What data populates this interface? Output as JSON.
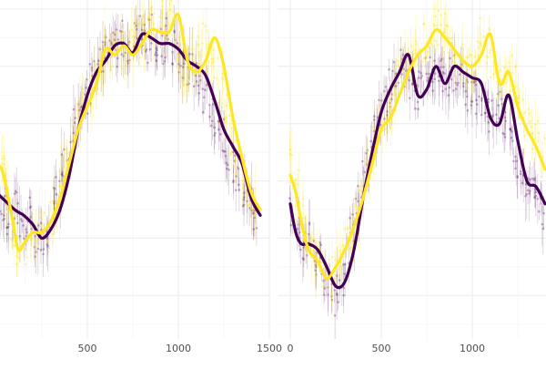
{
  "colors": {
    "series_a": "#440154",
    "series_b": "#fde725",
    "grid": "#ebebeb",
    "background": "#ffffff",
    "tick_text": "#4d4d4d"
  },
  "chart_data": [
    {
      "type": "scatter",
      "panel": "left",
      "xlim": [
        0,
        1500
      ],
      "x_ticks": [
        500,
        1000,
        1500
      ],
      "x_tick_labels": [
        "500",
        "1000",
        "1500"
      ],
      "ylim": [
        -1.3,
        1.5
      ],
      "grid": true,
      "error_bars": true,
      "series": [
        {
          "color": "#440154",
          "smooth_x": [
            0,
            100,
            150,
            200,
            250,
            300,
            350,
            400,
            450,
            500,
            550,
            600,
            650,
            700,
            750,
            800,
            850,
            900,
            950,
            1000,
            1050,
            1100,
            1150,
            1200,
            1250,
            1300,
            1350,
            1400,
            1450
          ],
          "smooth_y": [
            -0.1,
            -0.25,
            -0.3,
            -0.38,
            -0.5,
            -0.42,
            -0.25,
            0.05,
            0.45,
            0.75,
            0.95,
            1.05,
            1.18,
            1.2,
            1.12,
            1.28,
            1.25,
            1.2,
            1.2,
            1.15,
            1.05,
            1.0,
            0.92,
            0.7,
            0.45,
            0.3,
            0.15,
            -0.15,
            -0.3
          ],
          "points": [
            [
              10,
              -0.15
            ],
            [
              40,
              -0.2
            ],
            [
              70,
              -0.3
            ],
            [
              100,
              -0.25
            ],
            [
              130,
              -0.35
            ],
            [
              160,
              -0.45
            ],
            [
              190,
              -0.3
            ],
            [
              220,
              -0.55
            ],
            [
              250,
              -0.5
            ],
            [
              280,
              -0.4
            ],
            [
              310,
              -0.2
            ],
            [
              340,
              -0.1
            ],
            [
              370,
              0.1
            ],
            [
              400,
              0.25
            ],
            [
              430,
              0.45
            ],
            [
              460,
              0.6
            ],
            [
              490,
              0.75
            ],
            [
              520,
              0.85
            ],
            [
              550,
              0.95
            ],
            [
              580,
              1.05
            ],
            [
              610,
              1.1
            ],
            [
              640,
              1.2
            ],
            [
              670,
              1.15
            ],
            [
              700,
              1.25
            ],
            [
              730,
              1.1
            ],
            [
              760,
              1.25
            ],
            [
              790,
              1.3
            ],
            [
              820,
              1.2
            ],
            [
              850,
              1.28
            ],
            [
              880,
              1.22
            ],
            [
              910,
              1.18
            ],
            [
              940,
              1.25
            ],
            [
              970,
              1.15
            ],
            [
              1000,
              1.1
            ],
            [
              1030,
              1.05
            ],
            [
              1060,
              1.0
            ],
            [
              1090,
              0.95
            ],
            [
              1120,
              0.85
            ],
            [
              1150,
              0.75
            ],
            [
              1180,
              0.6
            ],
            [
              1210,
              0.5
            ],
            [
              1240,
              0.4
            ],
            [
              1270,
              0.25
            ],
            [
              1300,
              0.15
            ],
            [
              1330,
              0.0
            ],
            [
              1360,
              -0.1
            ],
            [
              1390,
              -0.2
            ],
            [
              1420,
              -0.35
            ]
          ]
        },
        {
          "color": "#fde725",
          "smooth_x": [
            0,
            30,
            60,
            90,
            120,
            150,
            200,
            250,
            300,
            350,
            400,
            450,
            500,
            550,
            600,
            650,
            700,
            750,
            800,
            850,
            900,
            950,
            1000,
            1050,
            1100,
            1150,
            1200,
            1250,
            1300,
            1350,
            1400,
            1450
          ],
          "smooth_y": [
            0.15,
            0.1,
            -0.1,
            -0.35,
            -0.6,
            -0.55,
            -0.45,
            -0.45,
            -0.35,
            -0.15,
            0.15,
            0.45,
            0.65,
            0.85,
            1.15,
            1.1,
            1.18,
            1.1,
            1.2,
            1.32,
            1.3,
            1.3,
            1.45,
            1.05,
            0.95,
            1.05,
            1.25,
            1.0,
            0.55,
            0.2,
            -0.1,
            -0.25
          ],
          "points": [
            [
              5,
              0.2
            ],
            [
              35,
              0.05
            ],
            [
              65,
              -0.15
            ],
            [
              95,
              -0.4
            ],
            [
              125,
              -0.55
            ],
            [
              155,
              -0.6
            ],
            [
              185,
              -0.45
            ],
            [
              215,
              -0.5
            ],
            [
              245,
              -0.4
            ],
            [
              275,
              -0.45
            ],
            [
              305,
              -0.3
            ],
            [
              335,
              -0.15
            ],
            [
              365,
              0.05
            ],
            [
              395,
              0.2
            ],
            [
              425,
              0.4
            ],
            [
              455,
              0.55
            ],
            [
              485,
              0.7
            ],
            [
              515,
              0.8
            ],
            [
              545,
              0.9
            ],
            [
              575,
              1.05
            ],
            [
              605,
              1.15
            ],
            [
              635,
              1.1
            ],
            [
              665,
              1.2
            ],
            [
              695,
              1.15
            ],
            [
              725,
              1.1
            ],
            [
              755,
              1.2
            ],
            [
              785,
              1.25
            ],
            [
              815,
              1.3
            ],
            [
              845,
              1.35
            ],
            [
              875,
              1.3
            ],
            [
              905,
              1.4
            ],
            [
              935,
              1.35
            ],
            [
              965,
              1.45
            ],
            [
              995,
              1.2
            ],
            [
              1025,
              1.0
            ],
            [
              1055,
              0.95
            ],
            [
              1085,
              1.05
            ],
            [
              1115,
              1.1
            ],
            [
              1145,
              1.2
            ],
            [
              1175,
              1.15
            ],
            [
              1205,
              1.0
            ],
            [
              1235,
              0.8
            ],
            [
              1265,
              0.6
            ],
            [
              1295,
              0.4
            ],
            [
              1325,
              0.2
            ],
            [
              1355,
              0.05
            ],
            [
              1385,
              -0.1
            ],
            [
              1415,
              -0.2
            ]
          ]
        }
      ]
    },
    {
      "type": "scatter",
      "panel": "right",
      "xlim": [
        0,
        1400
      ],
      "x_ticks": [
        0,
        500,
        1000
      ],
      "x_tick_labels": [
        "0",
        "500",
        "1000"
      ],
      "ylim": [
        -1.3,
        1.5
      ],
      "grid": true,
      "error_bars": true,
      "series": [
        {
          "color": "#440154",
          "smooth_x": [
            0,
            30,
            60,
            100,
            150,
            200,
            250,
            300,
            350,
            400,
            450,
            500,
            550,
            600,
            650,
            700,
            750,
            800,
            850,
            900,
            950,
            1000,
            1050,
            1100,
            1150,
            1200,
            1250,
            1300,
            1350,
            1400
          ],
          "smooth_y": [
            -0.2,
            -0.45,
            -0.55,
            -0.55,
            -0.6,
            -0.75,
            -0.92,
            -0.88,
            -0.6,
            -0.15,
            0.25,
            0.6,
            0.8,
            0.95,
            1.1,
            0.75,
            0.8,
            1.0,
            0.85,
            1.0,
            0.95,
            0.9,
            0.85,
            0.55,
            0.5,
            0.75,
            0.35,
            0.0,
            -0.05,
            -0.2
          ],
          "points": [
            [
              10,
              -0.3
            ],
            [
              40,
              -0.45
            ],
            [
              70,
              -0.6
            ],
            [
              100,
              -0.5
            ],
            [
              130,
              -0.65
            ],
            [
              160,
              -0.7
            ],
            [
              190,
              -0.85
            ],
            [
              220,
              -0.95
            ],
            [
              250,
              -1.0
            ],
            [
              280,
              -0.85
            ],
            [
              310,
              -0.7
            ],
            [
              340,
              -0.45
            ],
            [
              370,
              -0.2
            ],
            [
              400,
              0.0
            ],
            [
              430,
              0.2
            ],
            [
              460,
              0.4
            ],
            [
              490,
              0.55
            ],
            [
              520,
              0.7
            ],
            [
              550,
              0.8
            ],
            [
              580,
              0.9
            ],
            [
              610,
              1.0
            ],
            [
              640,
              0.95
            ],
            [
              670,
              0.85
            ],
            [
              700,
              0.8
            ],
            [
              730,
              0.9
            ],
            [
              760,
              0.95
            ],
            [
              790,
              0.9
            ],
            [
              820,
              1.0
            ],
            [
              850,
              0.85
            ],
            [
              880,
              0.9
            ],
            [
              910,
              0.95
            ],
            [
              940,
              0.85
            ],
            [
              970,
              0.75
            ],
            [
              1000,
              0.8
            ],
            [
              1030,
              0.7
            ],
            [
              1060,
              0.6
            ],
            [
              1090,
              0.55
            ],
            [
              1120,
              0.6
            ],
            [
              1150,
              0.65
            ],
            [
              1180,
              0.5
            ],
            [
              1210,
              0.35
            ],
            [
              1240,
              0.2
            ],
            [
              1270,
              0.05
            ],
            [
              1300,
              0.0
            ],
            [
              1330,
              -0.05
            ],
            [
              1360,
              -0.15
            ],
            [
              1390,
              -0.25
            ]
          ]
        },
        {
          "color": "#fde725",
          "smooth_x": [
            0,
            30,
            60,
            100,
            150,
            200,
            250,
            300,
            350,
            400,
            450,
            500,
            550,
            600,
            650,
            700,
            750,
            800,
            850,
            900,
            950,
            1000,
            1050,
            1100,
            1150,
            1200,
            1250,
            1300,
            1350,
            1400
          ],
          "smooth_y": [
            0.05,
            -0.1,
            -0.35,
            -0.6,
            -0.7,
            -0.85,
            -0.75,
            -0.6,
            -0.4,
            -0.15,
            0.15,
            0.45,
            0.55,
            0.75,
            0.95,
            1.1,
            1.18,
            1.32,
            1.25,
            1.15,
            1.05,
            1.0,
            1.1,
            1.28,
            0.85,
            0.95,
            0.65,
            0.45,
            0.3,
            0.1
          ],
          "points": [
            [
              5,
              0.1
            ],
            [
              35,
              -0.05
            ],
            [
              65,
              -0.3
            ],
            [
              95,
              -0.55
            ],
            [
              125,
              -0.65
            ],
            [
              155,
              -0.7
            ],
            [
              185,
              -0.8
            ],
            [
              215,
              -0.85
            ],
            [
              245,
              -0.75
            ],
            [
              275,
              -0.7
            ],
            [
              305,
              -0.55
            ],
            [
              335,
              -0.45
            ],
            [
              365,
              -0.25
            ],
            [
              395,
              -0.1
            ],
            [
              425,
              0.1
            ],
            [
              455,
              0.3
            ],
            [
              485,
              0.45
            ],
            [
              515,
              0.5
            ],
            [
              545,
              0.6
            ],
            [
              575,
              0.75
            ],
            [
              605,
              0.9
            ],
            [
              635,
              1.0
            ],
            [
              665,
              1.1
            ],
            [
              695,
              1.15
            ],
            [
              725,
              1.2
            ],
            [
              755,
              1.25
            ],
            [
              785,
              1.3
            ],
            [
              815,
              1.35
            ],
            [
              845,
              1.3
            ],
            [
              875,
              1.2
            ],
            [
              905,
              1.1
            ],
            [
              935,
              1.05
            ],
            [
              965,
              1.0
            ],
            [
              995,
              1.05
            ],
            [
              1025,
              1.15
            ],
            [
              1055,
              1.25
            ],
            [
              1085,
              1.2
            ],
            [
              1115,
              1.05
            ],
            [
              1145,
              0.9
            ],
            [
              1175,
              0.85
            ],
            [
              1205,
              0.95
            ],
            [
              1235,
              0.85
            ],
            [
              1265,
              0.7
            ],
            [
              1295,
              0.55
            ],
            [
              1325,
              0.45
            ],
            [
              1355,
              0.35
            ],
            [
              1385,
              0.2
            ]
          ]
        }
      ]
    }
  ]
}
